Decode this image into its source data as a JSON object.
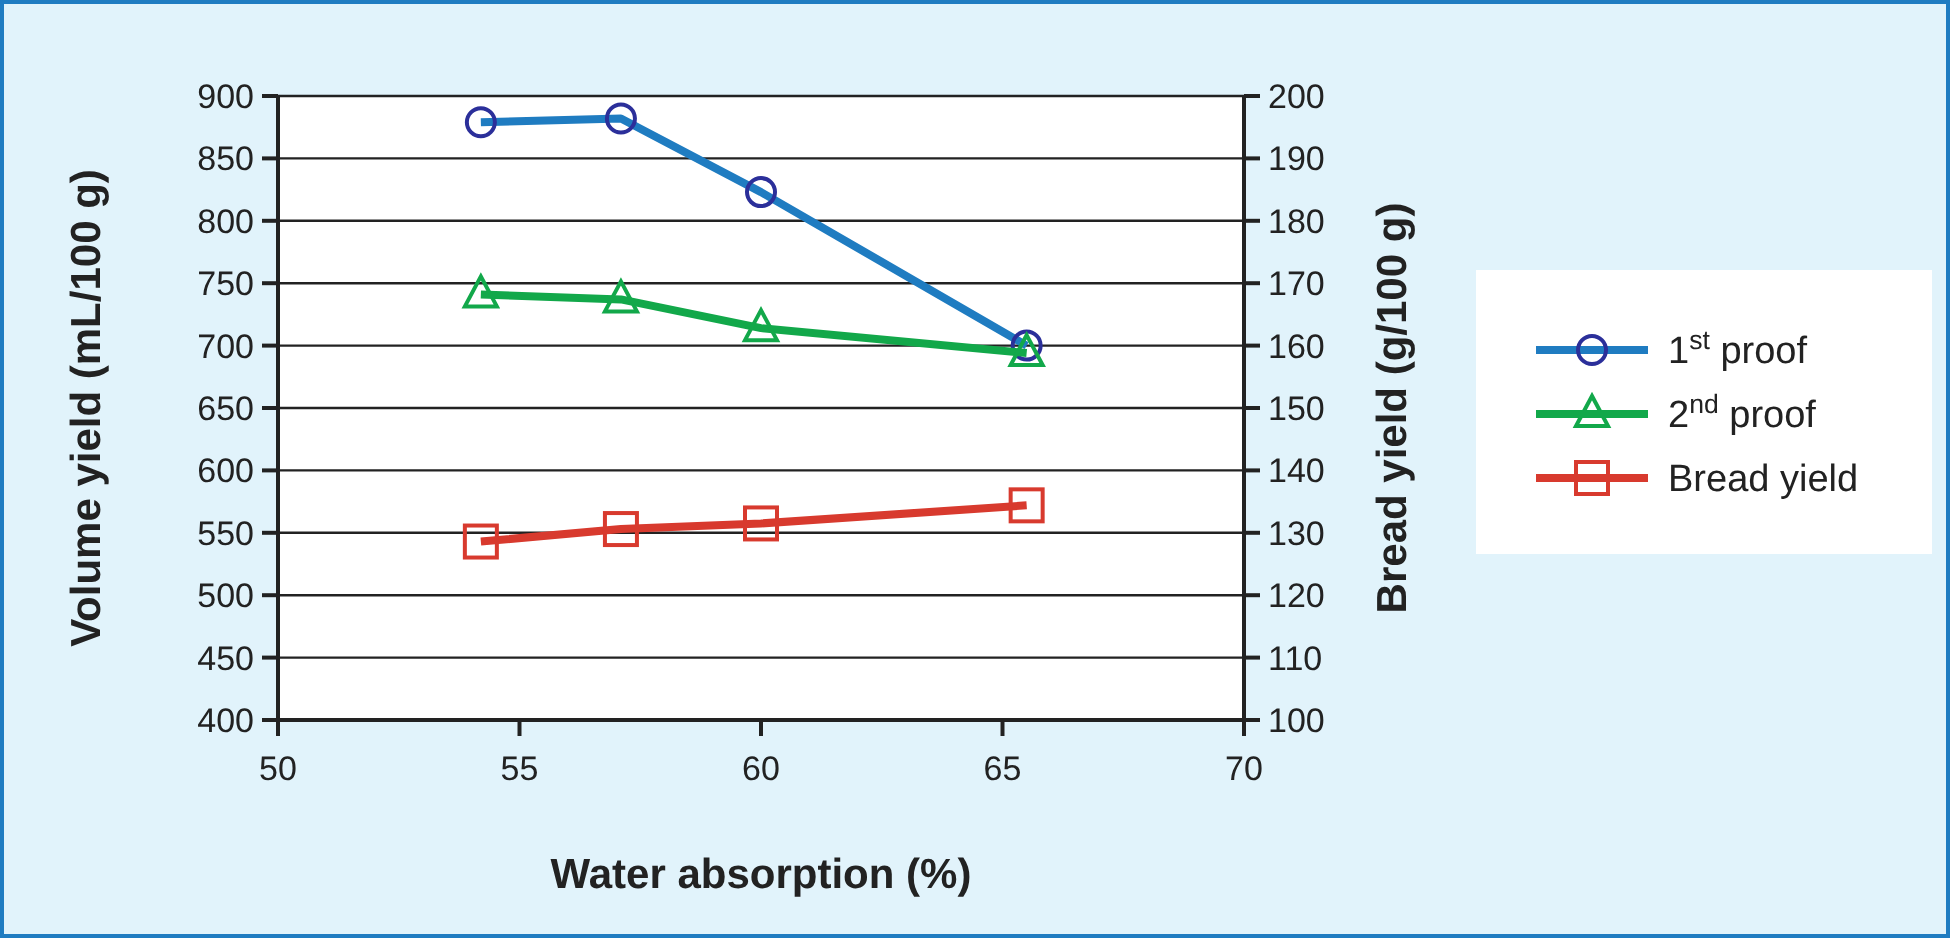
{
  "chart_data": {
    "type": "line",
    "xlabel": "Water absorption (%)",
    "ylabel": "Volume yield (mL/100 g)",
    "y2label": "Bread yield (g/100 g)",
    "x": [
      54.2,
      57.1,
      60.0,
      65.5
    ],
    "xlim": [
      50,
      70
    ],
    "xticks": [
      50,
      55,
      60,
      65,
      70
    ],
    "ylim": [
      400,
      900
    ],
    "yticks": [
      400,
      450,
      500,
      550,
      600,
      650,
      700,
      750,
      800,
      850,
      900
    ],
    "y2lim": [
      100,
      200
    ],
    "y2ticks": [
      100,
      110,
      120,
      130,
      140,
      150,
      160,
      170,
      180,
      190,
      200
    ],
    "grid": "y",
    "legend": "right",
    "series": [
      {
        "name": "1$^{st}$ proof",
        "color": "#1f7cc1",
        "marker": "circle",
        "values": [
          879,
          882,
          823,
          700
        ]
      },
      {
        "name": "2$^{nd}$ proof",
        "color": "#12a84a",
        "marker": "triangle",
        "values": [
          741,
          737,
          714,
          694
        ]
      },
      {
        "name": "Bread yield",
        "color": "#d83a2e",
        "marker": "square",
        "axis": "y2",
        "values": [
          128.6,
          130.6,
          131.5,
          134.4
        ]
      }
    ]
  }
}
